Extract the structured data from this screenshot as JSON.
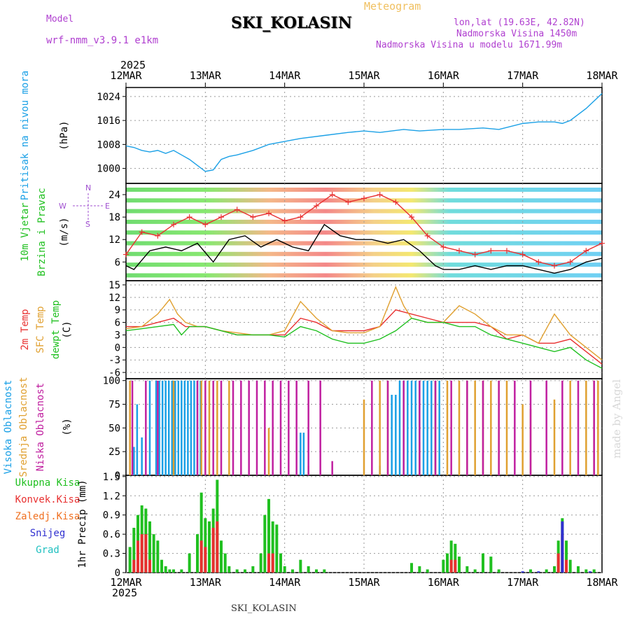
{
  "header": {
    "model_label": "Model",
    "model_name": "wrf-nmm_v3.9.1 e1km",
    "title": "SKI_KOLASIN",
    "meteogram_label": "Meteogram",
    "lonlat": "lon,lat (19.63E, 42.82N)",
    "elevation": "Nadmorska Visina 1450m",
    "model_elevation": "Nadmorska Visina u modelu 1671.99m",
    "year_top": "2025",
    "year_bottom": "2025",
    "station_bottom": "SKI_KOLASIN",
    "credit": "made by Angel",
    "colors": {
      "model": "#b040d0",
      "meteogram": "#f0c060",
      "title": "#000000"
    }
  },
  "chart_data": [
    {
      "type": "line",
      "panel": "pressure",
      "x_ticks": [
        "12MAR",
        "13MAR",
        "14MAR",
        "15MAR",
        "16MAR",
        "17MAR",
        "18MAR"
      ],
      "ylabels": [
        {
          "text": "Pritisak na nivou mora",
          "color": "#1aa0e6"
        },
        {
          "text": "(hPa)",
          "color": "#000000"
        }
      ],
      "ylim": [
        995,
        1027
      ],
      "y_ticks": [
        1000,
        1008,
        1016,
        1024
      ],
      "grid": true,
      "series": [
        {
          "color": "#1aa0e6",
          "x": [
            0,
            0.1,
            0.2,
            0.3,
            0.4,
            0.5,
            0.6,
            0.7,
            0.8,
            0.9,
            1.0,
            1.1,
            1.2,
            1.3,
            1.4,
            1.6,
            1.8,
            2.0,
            2.2,
            2.5,
            2.8,
            3.0,
            3.2,
            3.5,
            3.7,
            4.0,
            4.2,
            4.5,
            4.7,
            5.0,
            5.2,
            5.4,
            5.5,
            5.6,
            5.8,
            6.0
          ],
          "values": [
            1007.5,
            1007,
            1006,
            1005.5,
            1006,
            1005,
            1006,
            1004.5,
            1003,
            1001,
            999,
            999.5,
            1003,
            1004,
            1004.5,
            1006,
            1008,
            1009,
            1010,
            1011,
            1012,
            1012.5,
            1012,
            1013,
            1012.5,
            1013,
            1013,
            1013.5,
            1013,
            1015,
            1015.5,
            1015.5,
            1015,
            1016,
            1020,
            1025
          ]
        }
      ]
    },
    {
      "type": "line",
      "panel": "wind",
      "ylabels": [
        {
          "text": "10m Vjetar",
          "color": "#20c020"
        },
        {
          "text": "Brzina i Pravac",
          "color": "#20c020"
        },
        {
          "text": "(m/s)",
          "color": "#000000"
        }
      ],
      "compass": {
        "n": "N",
        "s": "S",
        "e": "E",
        "w": "W",
        "color": "#a050d0"
      },
      "ylim": [
        1,
        27
      ],
      "y_ticks": [
        6,
        12,
        18,
        24
      ],
      "series": [
        {
          "name": "speed",
          "color": "#000000",
          "x": [
            0,
            0.1,
            0.3,
            0.5,
            0.7,
            0.9,
            1.1,
            1.3,
            1.5,
            1.7,
            1.9,
            2.1,
            2.3,
            2.5,
            2.7,
            2.9,
            3.1,
            3.3,
            3.5,
            3.7,
            3.9,
            4.0,
            4.2,
            4.4,
            4.6,
            4.8,
            5.0,
            5.2,
            5.4,
            5.6,
            5.8,
            6.0
          ],
          "values": [
            5,
            4,
            9,
            10,
            9,
            11,
            6,
            12,
            13,
            10,
            12,
            10,
            9,
            16,
            13,
            12,
            12,
            11,
            12,
            9,
            5,
            4,
            4,
            5,
            4,
            5,
            5,
            4,
            3,
            4,
            6,
            7
          ]
        },
        {
          "name": "gust",
          "color": "#e83030",
          "x": [
            0,
            0.2,
            0.4,
            0.6,
            0.8,
            1.0,
            1.2,
            1.4,
            1.6,
            1.8,
            2.0,
            2.2,
            2.4,
            2.6,
            2.8,
            3.0,
            3.2,
            3.4,
            3.6,
            3.8,
            4.0,
            4.2,
            4.4,
            4.6,
            4.8,
            5.0,
            5.2,
            5.4,
            5.6,
            5.8,
            6.0
          ],
          "values": [
            8,
            14,
            13,
            16,
            18,
            16,
            18,
            20,
            18,
            19,
            17,
            18,
            21,
            24,
            22,
            23,
            24,
            22,
            18,
            13,
            10,
            9,
            8,
            9,
            9,
            8,
            6,
            5,
            6,
            9,
            11
          ]
        }
      ]
    },
    {
      "type": "line",
      "panel": "temperature",
      "ylabels": [
        {
          "text": "2m Temp",
          "color": "#e83030"
        },
        {
          "text": "SFC Temp",
          "color": "#e0a030"
        },
        {
          "text": "dewpt Temp",
          "color": "#20c020"
        },
        {
          "text": "(C)",
          "color": "#000000"
        }
      ],
      "ylim": [
        -7.5,
        16
      ],
      "y_ticks": [
        -6,
        -3,
        0,
        3,
        6,
        9,
        12,
        15
      ],
      "series": [
        {
          "name": "2m Temp",
          "color": "#e83030",
          "x": [
            0,
            0.2,
            0.4,
            0.6,
            0.75,
            0.9,
            1.0,
            1.2,
            1.4,
            1.6,
            1.8,
            2.0,
            2.2,
            2.4,
            2.6,
            2.8,
            3.0,
            3.2,
            3.4,
            3.6,
            3.8,
            4.0,
            4.2,
            4.4,
            4.6,
            4.8,
            5.0,
            5.2,
            5.4,
            5.6,
            5.8,
            6.0
          ],
          "values": [
            5,
            5,
            6,
            7,
            5,
            5,
            5,
            4,
            3,
            3,
            3,
            3,
            7,
            6,
            4,
            4,
            4,
            5,
            9,
            8,
            7,
            6,
            6,
            6,
            5,
            2,
            3,
            1,
            1,
            2,
            -1,
            -4
          ]
        },
        {
          "name": "SFC Temp",
          "color": "#e0a030",
          "x": [
            0,
            0.2,
            0.4,
            0.55,
            0.65,
            0.75,
            0.9,
            1.0,
            1.2,
            1.4,
            1.6,
            1.8,
            2.0,
            2.2,
            2.4,
            2.6,
            2.8,
            3.0,
            3.2,
            3.4,
            3.5,
            3.6,
            3.8,
            4.0,
            4.2,
            4.4,
            4.6,
            4.8,
            5.0,
            5.2,
            5.4,
            5.6,
            5.8,
            6.0
          ],
          "values": [
            4.5,
            5,
            8,
            11.5,
            8,
            6,
            5,
            5,
            4,
            3.5,
            3,
            3,
            4,
            11,
            7,
            4,
            3.5,
            3.5,
            5,
            14.5,
            10,
            7,
            6,
            6,
            10,
            8,
            5,
            3,
            3,
            1,
            8,
            3,
            0,
            -3
          ]
        },
        {
          "name": "dewpt Temp",
          "color": "#20c020",
          "x": [
            0,
            0.2,
            0.4,
            0.6,
            0.7,
            0.8,
            1.0,
            1.2,
            1.4,
            1.6,
            1.8,
            2.0,
            2.2,
            2.4,
            2.6,
            2.8,
            3.0,
            3.2,
            3.4,
            3.6,
            3.8,
            4.0,
            4.2,
            4.4,
            4.6,
            4.8,
            5.0,
            5.2,
            5.4,
            5.6,
            5.8,
            6.0
          ],
          "values": [
            4,
            4.5,
            5,
            5.5,
            3,
            5,
            5,
            4,
            3,
            3,
            3,
            2.5,
            5,
            4,
            2,
            1,
            1,
            2,
            4,
            7,
            6,
            6,
            5,
            5,
            3,
            2,
            1,
            0,
            -1,
            0,
            -3,
            -5
          ]
        }
      ]
    },
    {
      "type": "bar",
      "panel": "clouds",
      "ylabels": [
        {
          "text": "Visoka Oblacnost",
          "color": "#1aa0e6"
        },
        {
          "text": "Srednja Oblacnost",
          "color": "#e0a030"
        },
        {
          "text": "Niska Oblacnost",
          "color": "#c020a0"
        },
        {
          "text": "(%)",
          "color": "#000000"
        }
      ],
      "ylim": [
        0,
        102
      ],
      "y_ticks": [
        0,
        25,
        50,
        75,
        100
      ],
      "series": [
        {
          "name": "Visoka",
          "color": "#1aa0e6",
          "x": [
            0.1,
            0.14,
            0.2,
            0.3,
            0.38,
            0.42,
            0.46,
            0.5,
            0.54,
            0.58,
            0.62,
            0.66,
            0.7,
            0.74,
            0.78,
            0.82,
            0.86,
            0.9,
            0.94,
            2.2,
            2.24,
            3.2,
            3.35,
            3.4,
            3.45,
            3.5,
            3.55,
            3.6,
            3.65,
            3.7,
            3.75,
            3.8,
            3.85,
            3.9,
            3.95
          ],
          "values": [
            30,
            75,
            40,
            100,
            100,
            100,
            100,
            100,
            100,
            100,
            100,
            100,
            100,
            100,
            100,
            100,
            100,
            100,
            100,
            45,
            45,
            10,
            85,
            85,
            100,
            100,
            100,
            100,
            100,
            100,
            100,
            100,
            100,
            100,
            100
          ]
        },
        {
          "name": "Srednja",
          "color": "#e0a030",
          "x": [
            0.05,
            0.6,
            0.95,
            1.05,
            1.15,
            1.3,
            1.8,
            2.3,
            3.0,
            3.2,
            3.3,
            3.7,
            3.9,
            4.05,
            4.2,
            4.3,
            4.4,
            4.5,
            4.6,
            4.7,
            4.8,
            5.0,
            5.1,
            5.4,
            5.6,
            5.8,
            5.9,
            5.95
          ],
          "values": [
            100,
            100,
            100,
            100,
            100,
            100,
            50,
            10,
            80,
            100,
            100,
            35,
            100,
            100,
            100,
            100,
            100,
            100,
            100,
            100,
            100,
            75,
            70,
            80,
            100,
            100,
            100,
            100
          ]
        },
        {
          "name": "Niska",
          "color": "#c020a0",
          "x": [
            0.08,
            0.25,
            0.4,
            0.9,
            1.0,
            1.1,
            1.2,
            1.35,
            1.45,
            1.55,
            1.65,
            1.75,
            1.85,
            1.95,
            2.05,
            2.15,
            2.3,
            2.45,
            2.6,
            3.1,
            3.3,
            3.5,
            3.7,
            3.9,
            4.1,
            4.3,
            4.5,
            4.7,
            4.9,
            5.1,
            5.3,
            5.5,
            5.7,
            5.9
          ],
          "values": [
            100,
            100,
            100,
            100,
            100,
            100,
            100,
            100,
            100,
            100,
            100,
            100,
            100,
            100,
            100,
            100,
            100,
            100,
            15,
            100,
            100,
            100,
            100,
            100,
            100,
            100,
            100,
            100,
            100,
            100,
            100,
            100,
            100,
            100
          ]
        }
      ]
    },
    {
      "type": "bar",
      "panel": "precipitation",
      "ylabels": [
        {
          "text": "Ukupna Kisa",
          "color": "#20c020"
        },
        {
          "text": "Konvek.Kisa",
          "color": "#e83030"
        },
        {
          "text": "Zaledj.Kisa",
          "color": "#f07020"
        },
        {
          "text": "Snijeg",
          "color": "#3030d0"
        },
        {
          "text": "Grad",
          "color": "#20c0c0"
        },
        {
          "text": "1hr Precip (mm)",
          "color": "#000000"
        }
      ],
      "ylim": [
        0,
        1.52
      ],
      "y_ticks": [
        0,
        0.3,
        0.6,
        0.9,
        1.2,
        1.5
      ],
      "series": [
        {
          "name": "Ukupna Kisa",
          "color": "#20c020",
          "x": [
            0.05,
            0.1,
            0.15,
            0.2,
            0.25,
            0.3,
            0.35,
            0.4,
            0.45,
            0.5,
            0.55,
            0.6,
            0.7,
            0.8,
            0.9,
            0.95,
            1.0,
            1.05,
            1.1,
            1.15,
            1.2,
            1.25,
            1.3,
            1.4,
            1.5,
            1.6,
            1.7,
            1.75,
            1.8,
            1.85,
            1.9,
            1.95,
            2.0,
            2.1,
            2.2,
            2.3,
            2.4,
            2.5,
            3.6,
            3.7,
            3.8,
            4.0,
            4.05,
            4.1,
            4.15,
            4.2,
            4.3,
            4.4,
            4.5,
            4.6,
            4.7,
            5.1,
            5.3,
            5.4,
            5.45,
            5.5,
            5.55,
            5.6,
            5.7,
            5.8,
            5.9
          ],
          "values": [
            0.4,
            0.7,
            0.9,
            1.05,
            1.0,
            0.8,
            0.6,
            0.5,
            0.2,
            0.1,
            0.05,
            0.05,
            0.05,
            0.3,
            0.6,
            1.25,
            0.85,
            0.8,
            1.0,
            1.45,
            0.5,
            0.3,
            0.1,
            0.05,
            0.05,
            0.1,
            0.3,
            0.9,
            1.15,
            0.8,
            0.75,
            0.3,
            0.1,
            0.05,
            0.2,
            0.1,
            0.05,
            0.05,
            0.15,
            0.1,
            0.05,
            0.2,
            0.3,
            0.5,
            0.45,
            0.25,
            0.1,
            0.05,
            0.3,
            0.25,
            0.05,
            0.05,
            0.05,
            0.1,
            0.5,
            0.85,
            0.5,
            0.2,
            0.1,
            0.05,
            0.05
          ]
        },
        {
          "name": "Konvek.Kisa",
          "color": "#e83030",
          "x": [
            0.1,
            0.15,
            0.2,
            0.25,
            0.3,
            0.95,
            1.0,
            1.1,
            1.15,
            1.8,
            1.85,
            4.1,
            4.15,
            5.45,
            5.5,
            5.55
          ],
          "values": [
            0.2,
            0.5,
            0.6,
            0.6,
            0.2,
            0.5,
            0.4,
            0.7,
            0.8,
            0.3,
            0.3,
            0.2,
            0.2,
            0.3,
            0.6,
            0.2
          ]
        },
        {
          "name": "Snijeg",
          "color": "#3030d0",
          "x": [
            5.0,
            5.2,
            5.5,
            5.85
          ],
          "values": [
            0.02,
            0.02,
            0.8,
            0.02
          ]
        }
      ]
    }
  ]
}
